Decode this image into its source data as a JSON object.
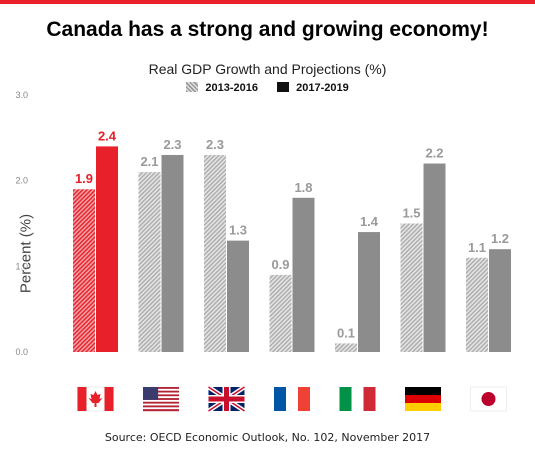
{
  "header": {
    "headline": "Canada has a strong and growing economy!",
    "source": "Source: OECD Economic Outlook, No. 102, November 2017"
  },
  "colors": {
    "accent_red": "#e8202a",
    "canada_hatch": "#e8202a",
    "other_solid": "#8c8c8c",
    "other_hatch": "#bfbfbf"
  },
  "chart_data": {
    "type": "bar",
    "title": "Real GDP Growth and Projections (%)",
    "xlabel": "",
    "ylabel": "Percent (%)",
    "ylim": [
      0,
      3.0
    ],
    "yticks": [
      "0.0",
      "1.0",
      "2.0",
      "3.0"
    ],
    "grid": false,
    "legend_position": "top-center",
    "categories": [
      "canada-flag",
      "usa-flag",
      "uk-flag",
      "france-flag",
      "italy-flag",
      "germany-flag",
      "japan-flag"
    ],
    "series": [
      {
        "name": "2013-2016",
        "values": [
          1.9,
          2.1,
          2.3,
          0.9,
          0.1,
          1.5,
          1.1
        ],
        "labels": [
          "1.9",
          "2.1",
          "2.3",
          "0.9",
          "0.1",
          "1.5",
          "1.1"
        ]
      },
      {
        "name": "2017-2019",
        "values": [
          2.4,
          2.3,
          1.3,
          1.8,
          1.4,
          2.2,
          1.2
        ],
        "labels": [
          "2.4",
          "2.3",
          "1.3",
          "1.8",
          "1.4",
          "2.2",
          "1.2"
        ]
      }
    ]
  }
}
